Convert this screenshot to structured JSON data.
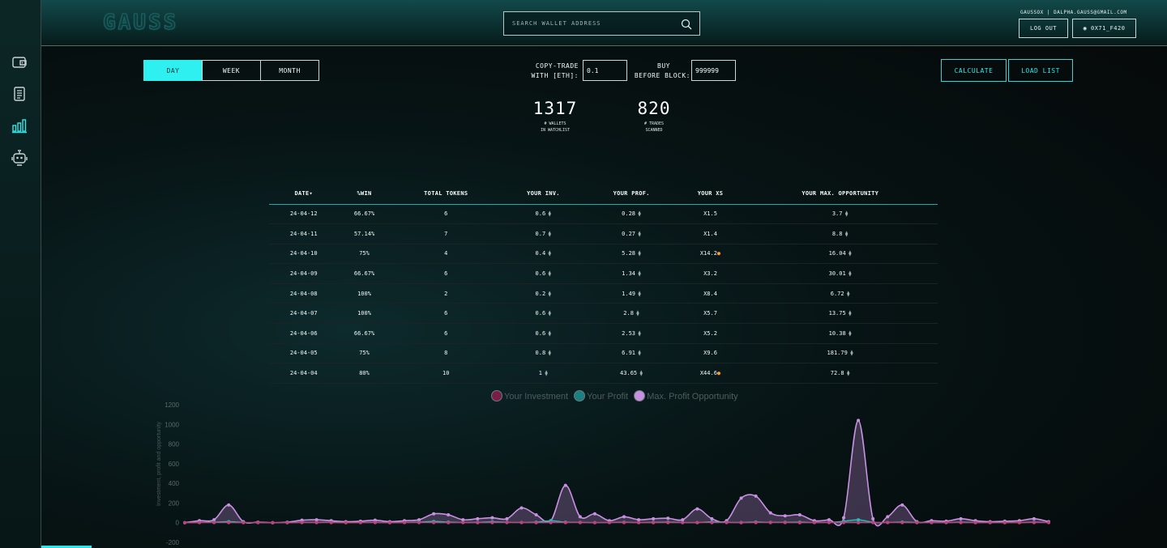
{
  "app": {
    "logo": "GAUSS",
    "search_placeholder": "SEARCH WALLET ADDRESS",
    "user_email": "GAUSSOX | DALPHA.GAUSS@GMAIL.COM",
    "logout_label": "LOG OUT",
    "wallet_label": "◉ 0X71_F420"
  },
  "sidebar": {
    "items": [
      {
        "name": "wallet-icon"
      },
      {
        "name": "document-list-icon"
      },
      {
        "name": "bar-chart-icon",
        "active": true
      },
      {
        "name": "robot-icon"
      }
    ],
    "active_color": "#2ee6e6",
    "inactive_color": "#c8d4d4"
  },
  "controls": {
    "periods": [
      "DAY",
      "WEEK",
      "MONTH"
    ],
    "active_period": "DAY",
    "copy_trade_label_1": "COPY-TRADE",
    "copy_trade_label_2": "WITH [ETH]:",
    "copy_trade_value": "0.1",
    "buy_before_label_1": "BUY",
    "buy_before_label_2": "BEFORE BLOCK:",
    "buy_before_value": "999999",
    "calculate_label": "CALCULATE",
    "load_list_label": "LOAD LIST"
  },
  "stats": {
    "wallets_value": "1317",
    "wallets_label_1": "# WALLETS",
    "wallets_label_2": "IN WATCHLIST",
    "trades_value": "820",
    "trades_label_1": "# TRADES",
    "trades_label_2": "SCANNED"
  },
  "table": {
    "headers": [
      "DATE▾",
      "%WIN",
      "TOTAL TOKENS",
      "YOUR INV.",
      "YOUR PROF.",
      "YOUR XS",
      "YOUR MAX. OPPORTUNITY"
    ],
    "rows": [
      {
        "date": "24-04-12",
        "win": "66.67%",
        "tokens": "6",
        "inv": "0.6",
        "prof": "0.28",
        "xs": "X1.5",
        "max": "3.7",
        "flame": false
      },
      {
        "date": "24-04-11",
        "win": "57.14%",
        "tokens": "7",
        "inv": "0.7",
        "prof": "0.27",
        "xs": "X1.4",
        "max": "8.8",
        "flame": false
      },
      {
        "date": "24-04-10",
        "win": "75%",
        "tokens": "4",
        "inv": "0.4",
        "prof": "5.28",
        "xs": "X14.2",
        "max": "16.04",
        "flame": true
      },
      {
        "date": "24-04-09",
        "win": "66.67%",
        "tokens": "6",
        "inv": "0.6",
        "prof": "1.34",
        "xs": "X3.2",
        "max": "30.01",
        "flame": false
      },
      {
        "date": "24-04-08",
        "win": "100%",
        "tokens": "2",
        "inv": "0.2",
        "prof": "1.49",
        "xs": "X8.4",
        "max": "6.72",
        "flame": false
      },
      {
        "date": "24-04-07",
        "win": "100%",
        "tokens": "6",
        "inv": "0.6",
        "prof": "2.8",
        "xs": "X5.7",
        "max": "13.75",
        "flame": false
      },
      {
        "date": "24-04-06",
        "win": "66.67%",
        "tokens": "6",
        "inv": "0.6",
        "prof": "2.53",
        "xs": "X5.2",
        "max": "10.38",
        "flame": false
      },
      {
        "date": "24-04-05",
        "win": "75%",
        "tokens": "8",
        "inv": "0.8",
        "prof": "6.91",
        "xs": "X9.6",
        "max": "181.79",
        "flame": false
      },
      {
        "date": "24-04-04",
        "win": "80%",
        "tokens": "10",
        "inv": "1",
        "prof": "43.65",
        "xs": "X44.6",
        "max": "72.8",
        "flame": true
      }
    ]
  },
  "chart_data": {
    "type": "area",
    "ylabel": "Investment, profit and opportunity",
    "ylim": [
      -200,
      1200
    ],
    "yticks": [
      -200,
      0,
      200,
      400,
      600,
      800,
      1000,
      1200
    ],
    "grid": false,
    "legend_position": "top-center",
    "series": [
      {
        "name": "Your Investment",
        "color": "#c4407a",
        "values": [
          0,
          1,
          1,
          1,
          0,
          1,
          0,
          0,
          1,
          1,
          1,
          0,
          1,
          1,
          0,
          1,
          1,
          1,
          0,
          1,
          0,
          1,
          1,
          1,
          0,
          1,
          1,
          1,
          0,
          1,
          1,
          1,
          0,
          1,
          0,
          1,
          1,
          1,
          0,
          1,
          1,
          1,
          0,
          1,
          1,
          1,
          0,
          1,
          1,
          1,
          0,
          1,
          1,
          1,
          0,
          1,
          0,
          1,
          1,
          1
        ]
      },
      {
        "name": "Your Profit",
        "color": "#2ab8b8",
        "values": [
          0,
          2,
          5,
          10,
          2,
          1,
          0,
          1,
          3,
          2,
          4,
          1,
          2,
          3,
          1,
          2,
          5,
          12,
          6,
          2,
          3,
          8,
          4,
          2,
          5,
          20,
          5,
          3,
          1,
          2,
          4,
          1,
          3,
          5,
          2,
          1,
          8,
          4,
          2,
          6,
          3,
          4,
          5,
          2,
          3,
          14,
          30,
          4,
          2,
          6,
          3,
          2,
          1,
          4,
          2,
          1,
          3,
          1,
          4,
          2
        ]
      },
      {
        "name": "Max. Profit Opportunity",
        "color": "#c890e0",
        "values": [
          0,
          20,
          30,
          180,
          10,
          5,
          0,
          5,
          25,
          30,
          20,
          10,
          15,
          25,
          10,
          20,
          30,
          90,
          80,
          30,
          40,
          50,
          40,
          150,
          80,
          20,
          380,
          60,
          90,
          20,
          60,
          30,
          40,
          45,
          30,
          140,
          40,
          20,
          250,
          270,
          100,
          70,
          80,
          20,
          30,
          50,
          1040,
          40,
          60,
          180,
          10,
          20,
          15,
          40,
          20,
          10,
          15,
          20,
          40,
          10
        ]
      }
    ]
  }
}
